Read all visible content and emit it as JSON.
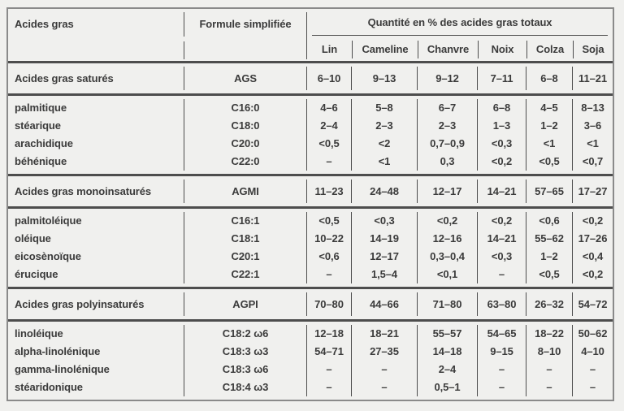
{
  "colors": {
    "background": "#f0f0ee",
    "outer_border": "#8a8a8a",
    "rule": "#4d4d4d",
    "text": "#3b3b3b"
  },
  "table": {
    "header": {
      "col1": "Acides gras",
      "col2": "Formule simplifiée",
      "group_label": "Quantité en % des acides gras totaux",
      "oils": [
        "Lin",
        "Cameline",
        "Chanvre",
        "Noix",
        "Colza",
        "Soja"
      ]
    },
    "sections": [
      {
        "summary": {
          "label": "Acides gras saturés",
          "code": "AGS",
          "values": [
            "6–10",
            "9–13",
            "9–12",
            "7–11",
            "6–8",
            "11–21"
          ]
        },
        "rows": [
          {
            "label": "palmitique",
            "code": "C16:0",
            "values": [
              "4–6",
              "5–8",
              "6–7",
              "6–8",
              "4–5",
              "8–13"
            ]
          },
          {
            "label": "stéarique",
            "code": "C18:0",
            "values": [
              "2–4",
              "2–3",
              "2–3",
              "1–3",
              "1–2",
              "3–6"
            ]
          },
          {
            "label": "arachidique",
            "code": "C20:0",
            "values": [
              "<0,5",
              "<2",
              "0,7–0,9",
              "<0,3",
              "<1",
              "<1"
            ]
          },
          {
            "label": "béhénique",
            "code": "C22:0",
            "values": [
              "–",
              "<1",
              "0,3",
              "<0,2",
              "<0,5",
              "<0,7"
            ]
          }
        ]
      },
      {
        "summary": {
          "label": "Acides gras monoinsaturés",
          "code": "AGMI",
          "values": [
            "11–23",
            "24–48",
            "12–17",
            "14–21",
            "57–65",
            "17–27"
          ]
        },
        "rows": [
          {
            "label": "palmitoléique",
            "code": "C16:1",
            "values": [
              "<0,5",
              "<0,3",
              "<0,2",
              "<0,2",
              "<0,6",
              "<0,2"
            ]
          },
          {
            "label": "oléique",
            "code": "C18:1",
            "values": [
              "10–22",
              "14–19",
              "12–16",
              "14–21",
              "55–62",
              "17–26"
            ]
          },
          {
            "label": "eicosènoïque",
            "code": "C20:1",
            "values": [
              "<0,6",
              "12–17",
              "0,3–0,4",
              "<0,3",
              "1–2",
              "<0,4"
            ]
          },
          {
            "label": "érucique",
            "code": "C22:1",
            "values": [
              "–",
              "1,5–4",
              "<0,1",
              "–",
              "<0,5",
              "<0,2"
            ]
          }
        ]
      },
      {
        "summary": {
          "label": "Acides gras polyinsaturés",
          "code": "AGPI",
          "values": [
            "70–80",
            "44–66",
            "71–80",
            "63–80",
            "26–32",
            "54–72"
          ]
        },
        "rows": [
          {
            "label": "linoléique",
            "code": "C18:2 ω6",
            "values": [
              "12–18",
              "18–21",
              "55–57",
              "54–65",
              "18–22",
              "50–62"
            ]
          },
          {
            "label": "alpha-linolénique",
            "code": "C18:3 ω3",
            "values": [
              "54–71",
              "27–35",
              "14–18",
              "9–15",
              "8–10",
              "4–10"
            ]
          },
          {
            "label": "gamma-linolénique",
            "code": "C18:3 ω6",
            "values": [
              "–",
              "–",
              "2–4",
              "–",
              "–",
              "–"
            ]
          },
          {
            "label": "stéaridonique",
            "code": "C18:4 ω3",
            "values": [
              "–",
              "–",
              "0,5–1",
              "–",
              "–",
              "–"
            ]
          }
        ]
      }
    ]
  }
}
